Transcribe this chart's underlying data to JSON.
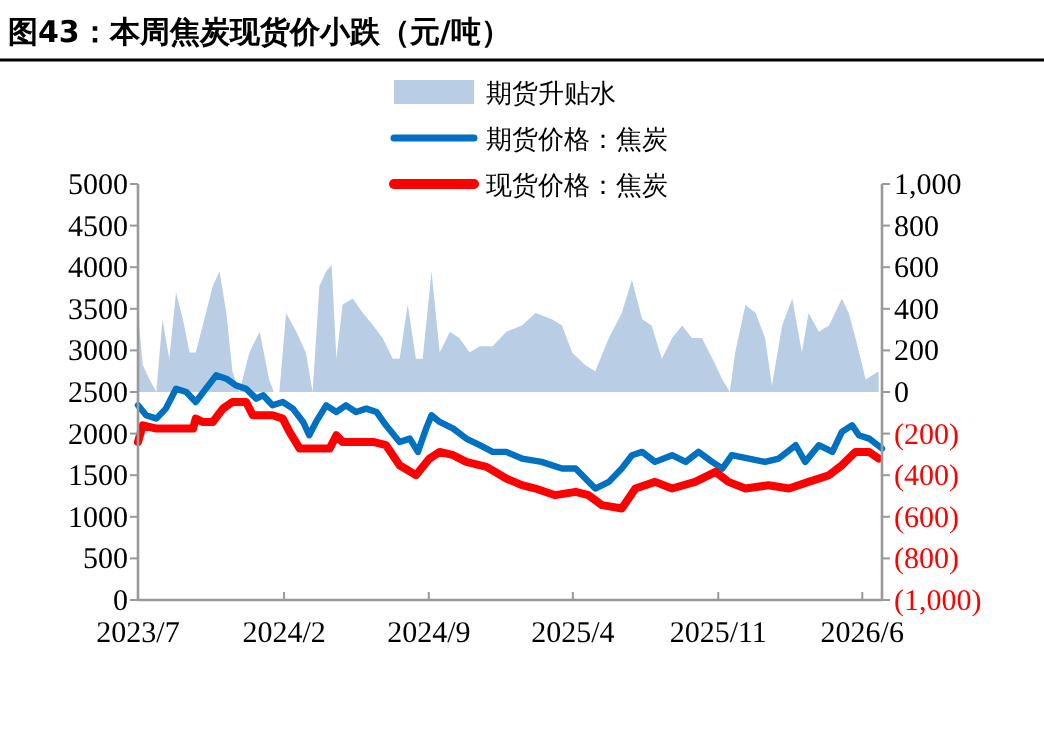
{
  "chart_data": {
    "type": "line",
    "title": "图43：本周焦炭现货价小跌（元/吨）",
    "legend": "top",
    "xlim": [
      "2023-07-01",
      "2026-06-30"
    ],
    "xticks": [
      {
        "value": "2023-07",
        "label": "2023/7"
      },
      {
        "value": "2024-02",
        "label": "2024/2"
      },
      {
        "value": "2024-09",
        "label": "2024/9"
      },
      {
        "value": "2025-04",
        "label": "2025/4"
      },
      {
        "value": "2025-11",
        "label": "2025/11"
      },
      {
        "value": "2026-06",
        "label": "2026/6"
      }
    ],
    "ylim": [
      0,
      5000
    ],
    "yticks": [
      0,
      500,
      1000,
      1500,
      2000,
      2500,
      3000,
      3500,
      4000,
      4500,
      5000
    ],
    "y2lim": [
      -1000,
      1000
    ],
    "y2ticks": [
      {
        "value": -1000,
        "label": "(1,000)"
      },
      {
        "value": -800,
        "label": "(800)"
      },
      {
        "value": -600,
        "label": "(600)"
      },
      {
        "value": -400,
        "label": "(400)"
      },
      {
        "value": -200,
        "label": "(200)"
      },
      0,
      200,
      400,
      600,
      800,
      {
        "value": 1000,
        "label": "1,000"
      }
    ],
    "series": [
      {
        "name": "期货升贴水",
        "type": "area",
        "axis": "y2",
        "color": "#b9cde5",
        "x": [
          "2023-07-01",
          "2023-07-08",
          "2023-07-18",
          "2023-07-28",
          "2023-08-06",
          "2023-08-16",
          "2023-08-26",
          "2023-09-05",
          "2023-09-15",
          "2023-09-24",
          "2023-10-09",
          "2023-10-19",
          "2023-10-29",
          "2023-11-08",
          "2023-11-17",
          "2023-11-27",
          "2023-12-12",
          "2023-12-27",
          "2024-01-10",
          "2024-01-17",
          "2024-01-25",
          "2024-02-04",
          "2024-02-19",
          "2024-03-04",
          "2024-03-14",
          "2024-03-24",
          "2024-04-03",
          "2024-04-11",
          "2024-04-18",
          "2024-04-27",
          "2024-05-12",
          "2024-05-27",
          "2024-06-11",
          "2024-06-25",
          "2024-07-10",
          "2024-07-20",
          "2024-08-01",
          "2024-08-13",
          "2024-08-23",
          "2024-09-05",
          "2024-09-17",
          "2024-10-02",
          "2024-10-16",
          "2024-10-31",
          "2024-11-15",
          "2024-12-04",
          "2024-12-24",
          "2025-01-16",
          "2025-02-05",
          "2025-03-01",
          "2025-03-16",
          "2025-03-31",
          "2025-04-19",
          "2025-05-04",
          "2025-05-24",
          "2025-06-12",
          "2025-06-27",
          "2025-07-12",
          "2025-07-26",
          "2025-08-10",
          "2025-08-25",
          "2025-09-09",
          "2025-09-23",
          "2025-10-08",
          "2025-10-28",
          "2025-11-07",
          "2025-11-18",
          "2025-11-26",
          "2025-12-11",
          "2025-12-26",
          "2026-01-09",
          "2026-01-19",
          "2026-02-03",
          "2026-02-18",
          "2026-03-04",
          "2026-03-14",
          "2026-03-29",
          "2026-04-13",
          "2026-05-02",
          "2026-05-12",
          "2026-05-22",
          "2026-06-06",
          "2026-06-25"
        ],
        "values": [
          380,
          130,
          60,
          0,
          350,
          160,
          480,
          350,
          190,
          190,
          380,
          510,
          580,
          380,
          100,
          0,
          190,
          290,
          60,
          0,
          0,
          380,
          290,
          190,
          0,
          510,
          580,
          610,
          160,
          420,
          450,
          380,
          320,
          260,
          160,
          160,
          420,
          160,
          160,
          580,
          190,
          290,
          260,
          190,
          220,
          220,
          290,
          320,
          380,
          350,
          320,
          190,
          130,
          100,
          260,
          380,
          540,
          350,
          320,
          160,
          260,
          320,
          260,
          260,
          130,
          60,
          0,
          190,
          420,
          380,
          260,
          30,
          320,
          450,
          190,
          380,
          290,
          320,
          450,
          380,
          260,
          60,
          100
        ]
      },
      {
        "name": "期货价格：焦炭",
        "color": "#0070c0",
        "x": [
          "2023-07-01",
          "2023-07-13",
          "2023-07-28",
          "2023-08-11",
          "2023-08-26",
          "2023-09-10",
          "2023-09-24",
          "2023-10-09",
          "2023-10-24",
          "2023-11-08",
          "2023-11-22",
          "2023-12-07",
          "2023-12-22",
          "2024-01-01",
          "2024-01-15",
          "2024-01-30",
          "2024-02-14",
          "2024-02-29",
          "2024-03-09",
          "2024-03-19",
          "2024-04-03",
          "2024-04-18",
          "2024-05-02",
          "2024-05-17",
          "2024-06-01",
          "2024-06-16",
          "2024-06-30",
          "2024-07-20",
          "2024-08-04",
          "2024-08-16",
          "2024-08-28",
          "2024-09-05",
          "2024-09-17",
          "2024-10-07",
          "2024-10-26",
          "2024-11-15",
          "2024-12-04",
          "2024-12-24",
          "2025-01-16",
          "2025-02-14",
          "2025-03-16",
          "2025-04-05",
          "2025-05-04",
          "2025-05-24",
          "2025-06-12",
          "2025-06-27",
          "2025-07-12",
          "2025-07-31",
          "2025-08-25",
          "2025-09-14",
          "2025-10-03",
          "2025-10-23",
          "2025-11-07",
          "2025-11-21",
          "2025-12-16",
          "2026-01-09",
          "2026-01-29",
          "2026-02-23",
          "2026-03-09",
          "2026-03-29",
          "2026-04-18",
          "2026-05-02",
          "2026-05-17",
          "2026-05-27",
          "2026-06-11",
          "2026-06-30"
        ],
        "values": [
          2340,
          2220,
          2180,
          2300,
          2540,
          2500,
          2380,
          2540,
          2700,
          2660,
          2580,
          2540,
          2420,
          2460,
          2340,
          2380,
          2300,
          2140,
          1980,
          2140,
          2340,
          2260,
          2340,
          2260,
          2300,
          2260,
          2100,
          1900,
          1940,
          1780,
          2060,
          2220,
          2140,
          2060,
          1940,
          1860,
          1780,
          1780,
          1700,
          1660,
          1580,
          1580,
          1340,
          1420,
          1580,
          1740,
          1780,
          1660,
          1740,
          1660,
          1780,
          1660,
          1580,
          1740,
          1700,
          1660,
          1700,
          1860,
          1660,
          1860,
          1780,
          2020,
          2100,
          1980,
          1940,
          1820
        ]
      },
      {
        "name": "现货价格：焦炭",
        "color": "#ff0000",
        "x": [
          "2023-07-01",
          "2023-07-08",
          "2023-07-28",
          "2023-08-21",
          "2023-09-20",
          "2023-09-24",
          "2023-10-04",
          "2023-10-19",
          "2023-11-03",
          "2023-11-17",
          "2023-12-07",
          "2023-12-17",
          "2024-01-15",
          "2024-01-30",
          "2024-02-09",
          "2024-02-24",
          "2024-03-19",
          "2024-04-08",
          "2024-04-18",
          "2024-04-27",
          "2024-05-22",
          "2024-06-11",
          "2024-06-30",
          "2024-07-20",
          "2024-08-13",
          "2024-09-02",
          "2024-09-17",
          "2024-10-07",
          "2024-10-26",
          "2024-11-25",
          "2024-12-24",
          "2025-01-16",
          "2025-02-05",
          "2025-03-06",
          "2025-04-05",
          "2025-04-24",
          "2025-05-14",
          "2025-06-12",
          "2025-07-02",
          "2025-07-31",
          "2025-08-25",
          "2025-09-28",
          "2025-10-28",
          "2025-11-16",
          "2025-12-11",
          "2026-01-14",
          "2026-02-13",
          "2026-03-14",
          "2026-04-13",
          "2026-05-02",
          "2026-05-22",
          "2026-06-11",
          "2026-06-25"
        ],
        "values": [
          1900,
          2100,
          2060,
          2060,
          2060,
          2180,
          2140,
          2140,
          2300,
          2380,
          2380,
          2220,
          2220,
          2180,
          2020,
          1820,
          1820,
          1820,
          1980,
          1900,
          1900,
          1900,
          1860,
          1620,
          1500,
          1700,
          1780,
          1740,
          1660,
          1600,
          1460,
          1380,
          1340,
          1260,
          1300,
          1260,
          1140,
          1100,
          1340,
          1420,
          1340,
          1420,
          1540,
          1420,
          1340,
          1380,
          1340,
          1420,
          1500,
          1620,
          1780,
          1780,
          1700
        ]
      }
    ]
  }
}
